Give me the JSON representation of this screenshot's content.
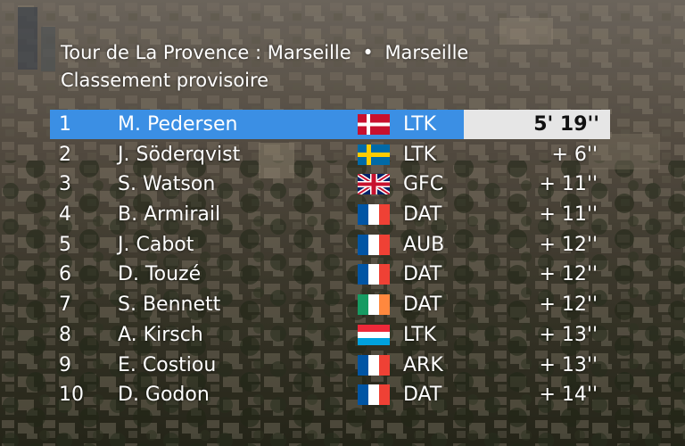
{
  "header": {
    "race_title": "Tour de La Provence : Marseille",
    "separator": "•",
    "finish": "Marseille",
    "subtitle": "Classement provisoire"
  },
  "standings": [
    {
      "pos": "1",
      "name": "M. Pedersen",
      "flag": "denmark-flag-icon",
      "team": "LTK",
      "time": "5' 19''"
    },
    {
      "pos": "2",
      "name": "J. Söderqvist",
      "flag": "sweden-flag-icon",
      "team": "LTK",
      "time": "+ 6''"
    },
    {
      "pos": "3",
      "name": "S. Watson",
      "flag": "uk-flag-icon",
      "team": "GFC",
      "time": "+ 11''"
    },
    {
      "pos": "4",
      "name": "B. Armirail",
      "flag": "france-flag-icon",
      "team": "DAT",
      "time": "+ 11''"
    },
    {
      "pos": "5",
      "name": "J. Cabot",
      "flag": "france-flag-icon",
      "team": "AUB",
      "time": "+ 12''"
    },
    {
      "pos": "6",
      "name": "D. Touzé",
      "flag": "france-flag-icon",
      "team": "DAT",
      "time": "+ 12''"
    },
    {
      "pos": "7",
      "name": "S. Bennett",
      "flag": "ireland-flag-icon",
      "team": "DAT",
      "time": "+ 12''"
    },
    {
      "pos": "8",
      "name": "A. Kirsch",
      "flag": "luxembourg-flag-icon",
      "team": "LTK",
      "time": "+ 13''"
    },
    {
      "pos": "9",
      "name": "E. Costiou",
      "flag": "france-flag-icon",
      "team": "ARK",
      "time": "+ 13''"
    },
    {
      "pos": "10",
      "name": "D. Godon",
      "flag": "france-flag-icon",
      "team": "DAT",
      "time": "+ 14''"
    }
  ],
  "colors": {
    "leader_highlight": "#3b8fe4",
    "leader_time_box": "#e6e6e6"
  }
}
